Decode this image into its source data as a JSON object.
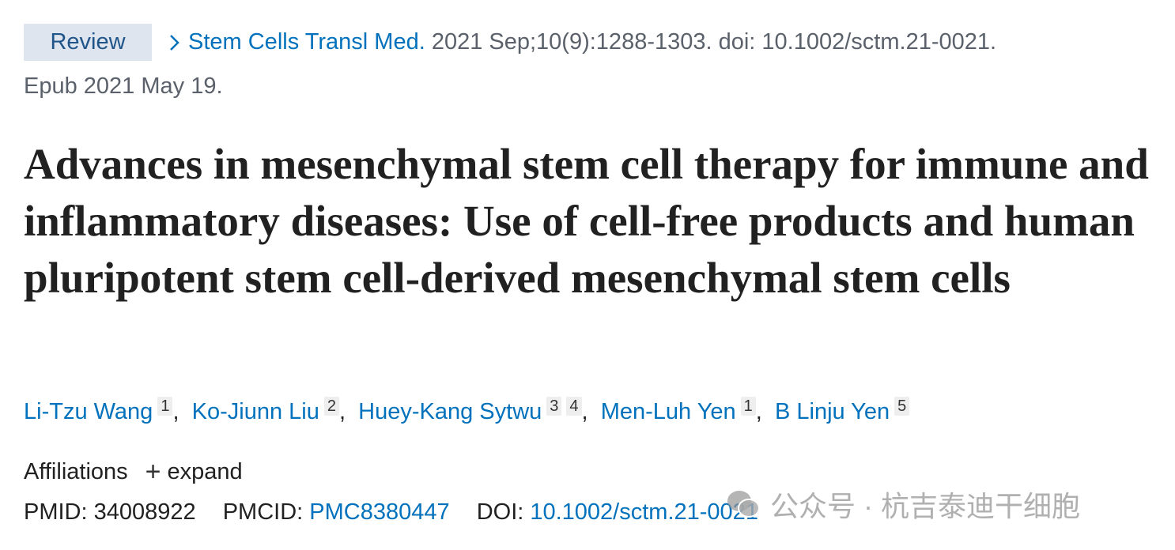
{
  "citation": {
    "type_badge": "Review",
    "journal": "Stem Cells Transl Med.",
    "details": " 2021 Sep;10(9):1288-1303. doi: 10.1002/sctm.21-0021.",
    "epub": "Epub 2021 May 19."
  },
  "title": "Advances in mesenchymal stem cell therapy for immune and inflammatory diseases: Use of cell-free products and human pluripotent stem cell-derived mesenchymal stem cells",
  "authors": [
    {
      "name": "Li-Tzu Wang",
      "affs": [
        "1"
      ]
    },
    {
      "name": "Ko-Jiunn Liu",
      "affs": [
        "2"
      ]
    },
    {
      "name": "Huey-Kang Sytwu",
      "affs": [
        "3",
        "4"
      ]
    },
    {
      "name": "Men-Luh Yen",
      "affs": [
        "1"
      ]
    },
    {
      "name": "B Linju Yen",
      "affs": [
        "5"
      ]
    }
  ],
  "separator": ", ",
  "affiliations": {
    "label": "Affiliations",
    "expand": "expand"
  },
  "identifiers": {
    "pmid_label": "PMID: ",
    "pmid": "34008922",
    "pmcid_label": "PMCID: ",
    "pmcid": "PMC8380447",
    "doi_label": "DOI: ",
    "doi": "10.1002/sctm.21-0021"
  },
  "watermark": "公众号 · 杭吉泰迪干细胞",
  "colors": {
    "link": "#0071bc",
    "badge_bg": "#dfe5ee",
    "badge_text": "#20558a"
  }
}
